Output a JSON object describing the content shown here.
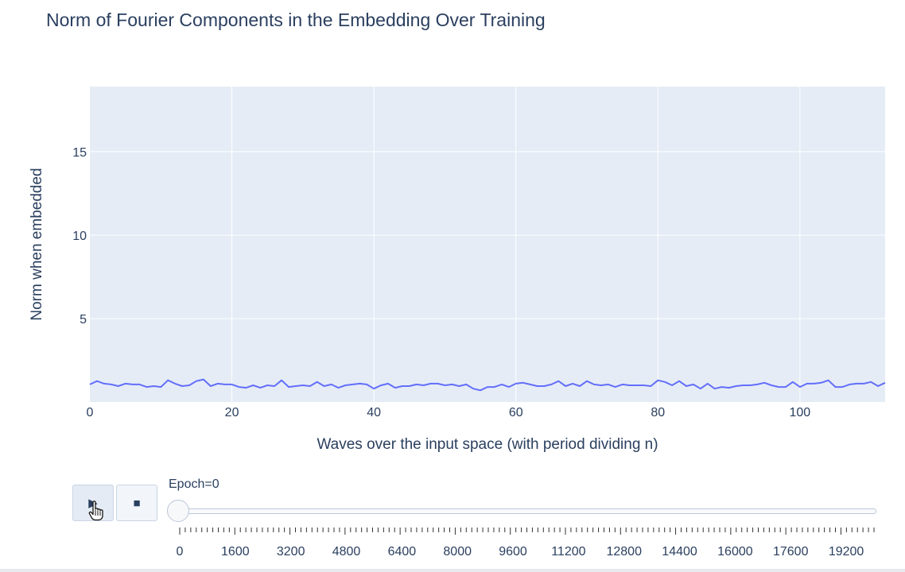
{
  "title": "Norm of Fourier Components in the Embedding Over Training",
  "chart_data": {
    "type": "line",
    "title": "Norm of Fourier Components in the Embedding Over Training",
    "xlabel": "Waves over the input space (with period dividing n)",
    "ylabel": "Norm when embedded",
    "xlim": [
      0,
      112
    ],
    "ylim": [
      0,
      18.9
    ],
    "x_ticks": [
      0,
      20,
      40,
      60,
      80,
      100
    ],
    "y_ticks": [
      5,
      10,
      15
    ],
    "grid": true,
    "colors": {
      "line": "#636efa",
      "plot_bg": "#e5ecf6",
      "grid": "#ffffff"
    },
    "series": [
      {
        "x": [
          0,
          1,
          2,
          3,
          4,
          5,
          6,
          7,
          8,
          9,
          10,
          11,
          12,
          13,
          14,
          15,
          16,
          17,
          18,
          19,
          20,
          21,
          22,
          23,
          24,
          25,
          26,
          27,
          28,
          29,
          30,
          31,
          32,
          33,
          34,
          35,
          36,
          37,
          38,
          39,
          40,
          41,
          42,
          43,
          44,
          45,
          46,
          47,
          48,
          49,
          50,
          51,
          52,
          53,
          54,
          55,
          56,
          57,
          58,
          59,
          60,
          61,
          62,
          63,
          64,
          65,
          66,
          67,
          68,
          69,
          70,
          71,
          72,
          73,
          74,
          75,
          76,
          77,
          78,
          79,
          80,
          81,
          82,
          83,
          84,
          85,
          86,
          87,
          88,
          89,
          90,
          91,
          92,
          93,
          94,
          95,
          96,
          97,
          98,
          99,
          100,
          101,
          102,
          103,
          104,
          105,
          106,
          107,
          108,
          109,
          110,
          111,
          112
        ],
        "values": [
          1.05,
          1.25,
          1.1,
          1.05,
          0.95,
          1.1,
          1.05,
          1.05,
          0.9,
          0.95,
          0.9,
          1.3,
          1.1,
          0.95,
          1.0,
          1.25,
          1.35,
          0.95,
          1.1,
          1.05,
          1.05,
          0.9,
          0.85,
          1.0,
          0.85,
          1.0,
          0.95,
          1.3,
          0.9,
          0.95,
          1.0,
          0.95,
          1.2,
          0.95,
          1.05,
          0.85,
          1.0,
          1.05,
          1.1,
          1.05,
          0.8,
          1.0,
          1.1,
          0.85,
          0.95,
          0.95,
          1.05,
          1.0,
          1.1,
          1.1,
          1.0,
          1.05,
          0.95,
          1.05,
          0.8,
          0.7,
          0.9,
          0.9,
          1.05,
          0.9,
          1.1,
          1.15,
          1.05,
          0.95,
          0.95,
          1.05,
          1.25,
          0.95,
          1.1,
          0.95,
          1.25,
          1.05,
          1.0,
          1.05,
          0.9,
          1.05,
          1.0,
          1.0,
          1.0,
          0.95,
          1.3,
          1.2,
          1.0,
          1.25,
          0.95,
          1.05,
          0.8,
          1.1,
          0.8,
          0.9,
          0.85,
          0.95,
          1.0,
          1.0,
          1.05,
          1.15,
          1.0,
          0.9,
          0.9,
          1.2,
          0.9,
          1.1,
          1.1,
          1.15,
          1.3,
          0.9,
          0.9,
          1.05,
          1.1,
          1.1,
          1.2,
          0.95,
          1.15
        ]
      }
    ]
  },
  "controls": {
    "play_symbol": "▶",
    "stop_symbol": "■",
    "slider_label": "Epoch=0",
    "slider_value": 0,
    "slider_ticks": [
      "0",
      "1600",
      "3200",
      "4800",
      "6400",
      "8000",
      "9600",
      "11200",
      "12800",
      "14400",
      "16000",
      "17600",
      "19200"
    ],
    "slider_max": 20000,
    "minor_tick_count": 126
  }
}
